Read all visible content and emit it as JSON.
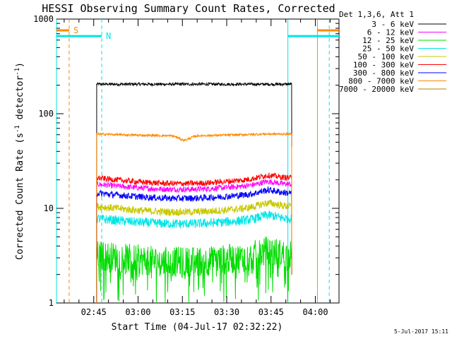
{
  "chart_data": {
    "type": "line",
    "title": "HESSI Observing Summary Count Rates, Corrected",
    "xlabel": "Start Time (04-Jul-17 02:32:22)",
    "ylabel_main": "Corrected Count Rate (s",
    "ylabel_sup1": "-1",
    "ylabel_mid": " detector",
    "ylabel_sup2": "-1",
    "ylabel_end": ")",
    "yscale": "log",
    "ylim": [
      1,
      1000
    ],
    "xlim_minutes": [
      152.4,
      248.0
    ],
    "yticks": [
      {
        "value": 1,
        "label": "1"
      },
      {
        "value": 10,
        "label": "10"
      },
      {
        "value": 100,
        "label": "100"
      },
      {
        "value": 1000,
        "label": "1000"
      }
    ],
    "xticks": [
      {
        "minutes": 165,
        "label": "02:45"
      },
      {
        "minutes": 180,
        "label": "03:00"
      },
      {
        "minutes": 195,
        "label": "03:15"
      },
      {
        "minutes": 210,
        "label": "03:30"
      },
      {
        "minutes": 225,
        "label": "03:45"
      },
      {
        "minutes": 240,
        "label": "04:00"
      }
    ],
    "data_window_minutes": [
      166.0,
      232.0
    ],
    "legend_header": "Det 1,3,6, Att 1",
    "legend_position": "outside-right",
    "series": [
      {
        "name": "3 - 6 keV",
        "color": "#000000",
        "level": 205,
        "dip": 0.0,
        "rise": 0.0,
        "noise": 0.015
      },
      {
        "name": "6 - 12 keV",
        "color": "#ff00ff",
        "level": 18,
        "dip": 0.12,
        "rise": 0.06,
        "noise": 0.03
      },
      {
        "name": "12 - 25 keV",
        "color": "#00dd00",
        "level": 3.2,
        "dip": 0.15,
        "rise": 0.1,
        "noise": 0.16
      },
      {
        "name": "25 - 50 keV",
        "color": "#00e5e5",
        "level": 7.8,
        "dip": 0.12,
        "rise": 0.08,
        "noise": 0.05
      },
      {
        "name": "50 - 100 keV",
        "color": "#c8c800",
        "level": 10.5,
        "dip": 0.13,
        "rise": 0.08,
        "noise": 0.04
      },
      {
        "name": "100 - 300 keV",
        "color": "#ff0000",
        "level": 21,
        "dip": 0.13,
        "rise": 0.06,
        "noise": 0.03
      },
      {
        "name": "300 - 800 keV",
        "color": "#0000ff",
        "level": 14.5,
        "dip": 0.12,
        "rise": 0.07,
        "noise": 0.035
      },
      {
        "name": "800 - 7000 keV",
        "color": "#ff8800",
        "level": 61,
        "dip": 0.04,
        "rise": 0.0,
        "noise": 0.012
      },
      {
        "name": "7000 - 20000 keV",
        "color": "#b08000",
        "level": 0,
        "dip": 0.0,
        "rise": 0.0,
        "noise": 0.0
      }
    ],
    "markers": [
      {
        "label": "S",
        "color": "#ff8800",
        "minutes": 156.7,
        "style": "dashed",
        "bar_level": 760
      },
      {
        "label": "N",
        "color": "#00e5e5",
        "minutes": 167.7,
        "style": "dashed",
        "bar_level": 660
      },
      {
        "label": "",
        "color": "#00e5e5",
        "minutes": 230.7,
        "style": "solid",
        "bar_level": 660
      },
      {
        "label": "",
        "color": "#ff8800",
        "minutes": 240.7,
        "style": "solid",
        "bar_level": 760
      },
      {
        "label": "",
        "color": "#00e5e5",
        "minutes": 244.7,
        "style": "dashed",
        "bar_level": 660
      },
      {
        "label": "",
        "color": "#00e5e5",
        "minutes": 152.4,
        "style": "solid",
        "bar_level": 660
      }
    ],
    "timestamp": "5-Jul-2017 15:11"
  }
}
